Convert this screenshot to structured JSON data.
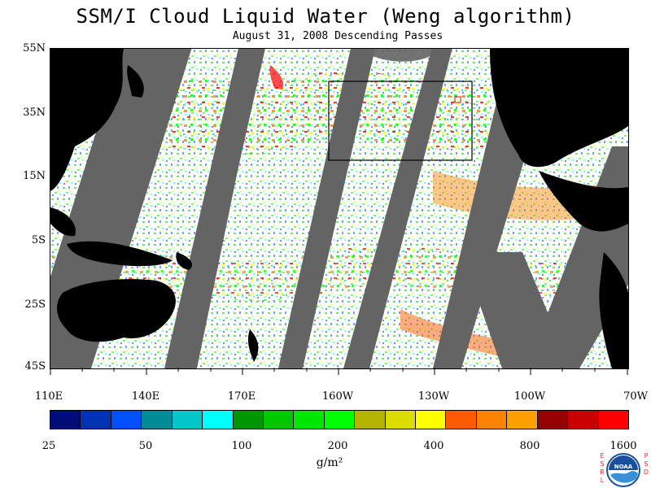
{
  "title": "SSM/I Cloud Liquid Water (Weng algorithm)",
  "subtitle": "August 31, 2008  Descending Passes",
  "y_axis_labels": [
    "55N",
    "35N",
    "15N",
    "5S",
    "25S",
    "45S"
  ],
  "x_axis_labels": [
    "110E",
    "140E",
    "170E",
    "160W",
    "130W",
    "100W",
    "70W"
  ],
  "colorbar": {
    "colors": [
      "#000c7a",
      "#0032b4",
      "#0050ff",
      "#008c96",
      "#00c8c8",
      "#00ffff",
      "#009600",
      "#00c800",
      "#00e600",
      "#00ff00",
      "#b4b400",
      "#dcdc00",
      "#ffff00",
      "#ff5a00",
      "#ff8200",
      "#ffa000",
      "#960000",
      "#c80000",
      "#ff0000"
    ],
    "labels": [
      "25",
      "50",
      "100",
      "200",
      "400",
      "800",
      "1600"
    ],
    "unit": "g/m²"
  },
  "map_colors": {
    "land": "#000000",
    "gap": "#646464",
    "ocean": "#ffffff"
  },
  "logo": {
    "text": "NOAA",
    "left_letters": "ESRL",
    "right_letters": "PSD"
  }
}
